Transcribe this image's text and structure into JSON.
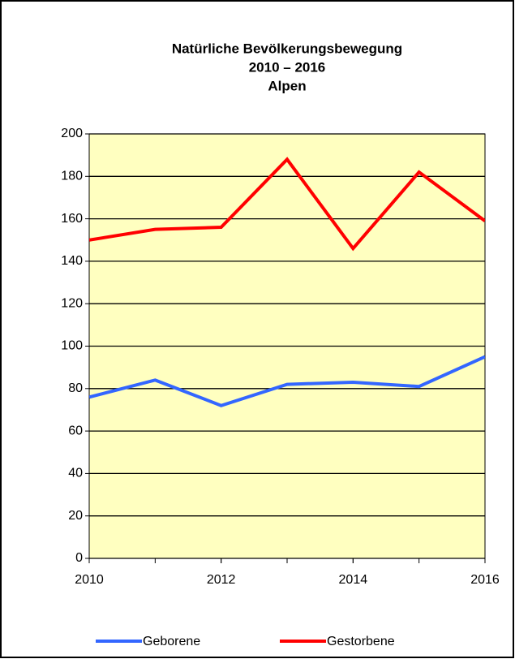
{
  "chart_data": {
    "type": "line",
    "title": [
      "Natürliche Bevölkerungsbewegung",
      "2010 – 2016",
      "Alpen"
    ],
    "x": [
      2010,
      2011,
      2012,
      2013,
      2014,
      2015,
      2016
    ],
    "series": [
      {
        "name": "Geborene",
        "color": "#3366ff",
        "values": [
          76,
          84,
          72,
          82,
          83,
          81,
          95
        ]
      },
      {
        "name": "Gestorbene",
        "color": "#ff0000",
        "values": [
          150,
          155,
          156,
          188,
          146,
          182,
          159
        ]
      }
    ],
    "xlim": [
      2010,
      2016
    ],
    "xticks": [
      2010,
      2012,
      2014,
      2016
    ],
    "ylim": [
      0,
      200
    ],
    "yticks": [
      0,
      20,
      40,
      60,
      80,
      100,
      120,
      140,
      160,
      180,
      200
    ],
    "grid": true,
    "legend": "bottom",
    "plot_background": "#ffffc0"
  }
}
